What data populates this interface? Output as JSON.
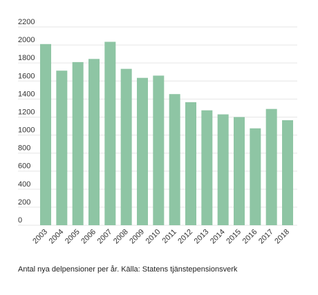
{
  "chart_data": {
    "type": "bar",
    "categories": [
      "2003",
      "2004",
      "2005",
      "2006",
      "2007",
      "2008",
      "2009",
      "2010",
      "2011",
      "2012",
      "2013",
      "2014",
      "2015",
      "2016",
      "2017",
      "2018"
    ],
    "values": [
      2010,
      1715,
      1810,
      1845,
      2035,
      1735,
      1635,
      1660,
      1455,
      1365,
      1275,
      1230,
      1200,
      1075,
      1290,
      1165
    ],
    "ylim": [
      0,
      2200
    ],
    "yticks": [
      0,
      200,
      400,
      600,
      800,
      1000,
      1200,
      1400,
      1600,
      1800,
      2000,
      2200
    ],
    "grid": true,
    "bar_color": "#8ec5a4",
    "grid_color": "#e6e6e6"
  },
  "caption": "Antal nya delpensioner per år. Källa: Statens tjänstepensionsverk"
}
